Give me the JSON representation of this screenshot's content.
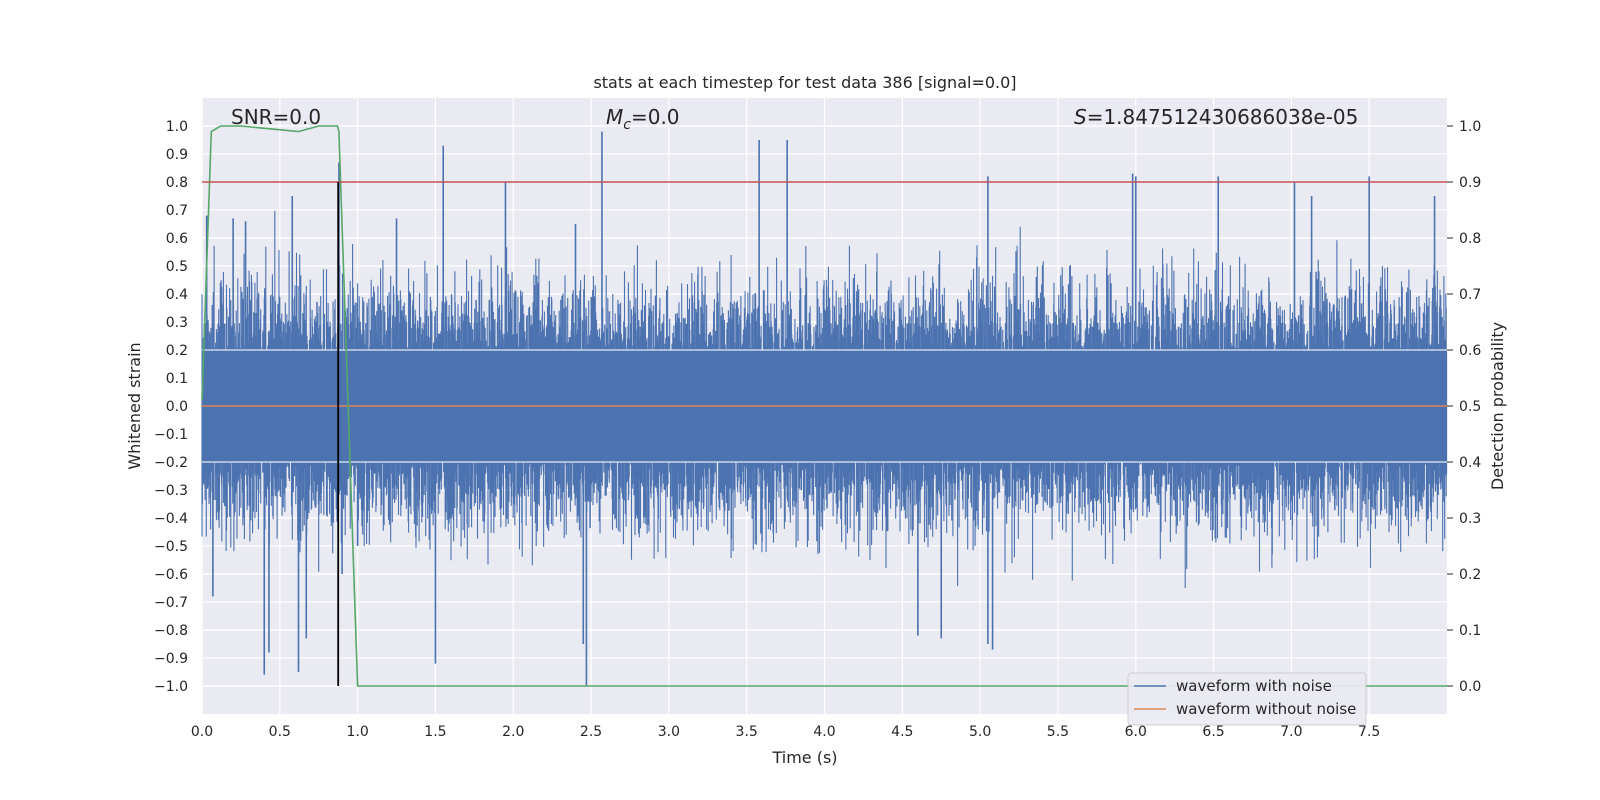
{
  "chart_data": {
    "type": "line",
    "title": "stats at each timestep for test data 386 [signal=0.0]",
    "xlabel": "Time (s)",
    "ylabel": "Whitened strain",
    "y2label": "Detection probability",
    "xlim": [
      0.0,
      8.0
    ],
    "ylim": [
      -1.1,
      1.1
    ],
    "y2lim": [
      -0.05,
      1.05
    ],
    "x_ticks": [
      0.0,
      0.5,
      1.0,
      1.5,
      2.0,
      2.5,
      3.0,
      3.5,
      4.0,
      4.5,
      5.0,
      5.5,
      6.0,
      6.5,
      7.0,
      7.5
    ],
    "x_tick_labels": [
      "0.0",
      "0.5",
      "1.0",
      "1.5",
      "2.0",
      "2.5",
      "3.0",
      "3.5",
      "4.0",
      "4.5",
      "5.0",
      "5.5",
      "6.0",
      "6.5",
      "7.0",
      "7.5"
    ],
    "y_ticks": [
      1.0,
      0.9,
      0.8,
      0.7,
      0.6,
      0.5,
      0.4,
      0.3,
      0.2,
      0.1,
      0.0,
      -0.1,
      -0.2,
      -0.3,
      -0.4,
      -0.5,
      -0.6,
      -0.7,
      -0.8,
      -0.9,
      -1.0
    ],
    "y_tick_labels": [
      "1.0",
      "0.9",
      "0.8",
      "0.7",
      "0.6",
      "0.5",
      "0.4",
      "0.3",
      "0.2",
      "0.1",
      "0.0",
      "−0.1",
      "−0.2",
      "−0.3",
      "−0.4",
      "−0.5",
      "−0.6",
      "−0.7",
      "−0.8",
      "−0.9",
      "−1.0"
    ],
    "y2_ticks": [
      1.0,
      0.9,
      0.8,
      0.7,
      0.6,
      0.5,
      0.4,
      0.3,
      0.2,
      0.1,
      0.0
    ],
    "y2_tick_labels": [
      "1.0",
      "0.9",
      "0.8",
      "0.7",
      "0.6",
      "0.5",
      "0.4",
      "0.3",
      "0.2",
      "0.1",
      "0.0"
    ],
    "grid": true,
    "annotations": {
      "snr": "SNR=0.0",
      "mc_symbol": "M",
      "mc_sub": "c",
      "mc_value": "=0.0",
      "s_symbol": "S",
      "s_value": "=1.847512430686038e-05"
    },
    "series": [
      {
        "name": "waveform with noise",
        "color": "#4c72b0",
        "axis": "left",
        "description_note": "dense noise trace",
        "spikes_x": [
          0.03,
          0.07,
          0.2,
          0.28,
          0.4,
          0.43,
          0.58,
          0.62,
          0.67,
          0.88,
          0.9,
          1.0,
          1.25,
          1.5,
          1.55,
          1.95,
          2.4,
          2.45,
          2.47,
          2.57,
          3.58,
          3.76,
          4.6,
          4.75,
          5.05,
          5.05,
          5.08,
          5.98,
          6.0,
          6.53,
          7.02,
          7.13,
          7.5,
          7.92
        ],
        "spikes_y": [
          0.68,
          -0.68,
          0.67,
          0.66,
          -0.96,
          -0.88,
          0.75,
          -0.95,
          -0.83,
          0.87,
          -0.6,
          -0.5,
          0.67,
          -0.92,
          0.93,
          0.8,
          0.65,
          -0.85,
          -1.0,
          0.98,
          0.95,
          0.95,
          -0.82,
          -0.83,
          0.82,
          -0.85,
          -0.87,
          0.83,
          0.82,
          0.82,
          0.8,
          0.75,
          0.82,
          0.75
        ]
      },
      {
        "name": "waveform without noise",
        "color": "#dd8452",
        "axis": "left",
        "x": [
          0.0,
          8.0
        ],
        "y": [
          0.0,
          0.0
        ]
      },
      {
        "name": "detection probability",
        "color": "#55a868",
        "axis": "right",
        "x": [
          0.0,
          0.06,
          0.12,
          0.25,
          0.62,
          0.75,
          0.87,
          0.88,
          1.0,
          8.0
        ],
        "y": [
          0.51,
          0.99,
          1.0,
          1.0,
          0.99,
          1.0,
          1.0,
          0.99,
          0.0,
          0.0
        ]
      },
      {
        "name": "threshold",
        "color": "#c44e52",
        "axis": "right",
        "x": [
          0.0,
          8.0
        ],
        "y": [
          0.9,
          0.9
        ]
      },
      {
        "name": "marker",
        "color": "#000000",
        "axis": "left",
        "x": [
          0.875,
          0.875
        ],
        "y": [
          -1.0,
          0.8
        ]
      }
    ],
    "legend": {
      "position": "lower-right",
      "entries": [
        {
          "label": "waveform with noise",
          "color": "#4c72b0"
        },
        {
          "label": "waveform without noise",
          "color": "#dd8452"
        }
      ]
    },
    "colors": {
      "plot_bg": "#eaeaf2",
      "grid": "#ffffff",
      "text": "#262626"
    }
  }
}
